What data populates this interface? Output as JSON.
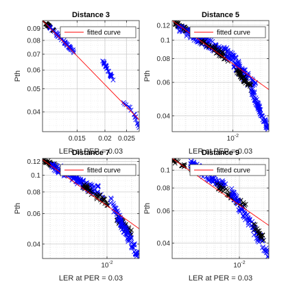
{
  "figure": {
    "background": "#ffffff"
  },
  "chart_data": [
    {
      "type": "scatter",
      "title": "Distance 3",
      "xlabel": "LER at PER = 0.03",
      "ylabel": "Pth",
      "xscale": "log",
      "yscale": "log",
      "xlim": [
        0.0105,
        0.0285
      ],
      "ylim": [
        0.033,
        0.097
      ],
      "xticks": [
        0.015,
        0.02,
        0.025
      ],
      "xtick_labels": [
        "0.015",
        "0.02",
        "0.025"
      ],
      "yticks": [
        0.04,
        0.05,
        0.06,
        0.07,
        0.08,
        0.09
      ],
      "ytick_labels": [
        "0.04",
        "0.05",
        "0.06",
        "0.07",
        "0.08",
        "0.09"
      ],
      "grid": true,
      "legend_position": "top-right",
      "legend_label": "fitted curve",
      "fit_line": [
        [
          0.0105,
          0.097
        ],
        [
          0.0285,
          0.037
        ]
      ],
      "clusters": [
        {
          "color": "#000000",
          "x": [
            0.0105,
            0.0118
          ],
          "y": [
            0.097,
            0.088
          ],
          "count": 30,
          "spread": 0.005
        },
        {
          "color": "#0000ff",
          "x": [
            0.011,
            0.0145
          ],
          "y": [
            0.093,
            0.072
          ],
          "count": 45,
          "spread": 0.012
        },
        {
          "color": "#0000ff",
          "x": [
            0.0195,
            0.0225
          ],
          "y": [
            0.066,
            0.052
          ],
          "count": 22,
          "spread": 0.012
        },
        {
          "color": "#0000ff",
          "x": [
            0.024,
            0.0262
          ],
          "y": [
            0.044,
            0.041
          ],
          "count": 6,
          "spread": 0.01
        },
        {
          "color": "#0000ff",
          "x": [
            0.0268,
            0.0285
          ],
          "y": [
            0.04,
            0.034
          ],
          "count": 10,
          "spread": 0.015
        }
      ]
    },
    {
      "type": "scatter",
      "title": "Distance 5",
      "xlabel": "LER at PER = 0.03",
      "ylabel": "Pth",
      "xscale": "log",
      "yscale": "log",
      "xlim": [
        0.00215,
        0.025
      ],
      "ylim": [
        0.033,
        0.127
      ],
      "xticks": [
        0.01
      ],
      "xtick_labels": [
        "10-2"
      ],
      "yticks": [
        0.04,
        0.06,
        0.08,
        0.1,
        0.12
      ],
      "ytick_labels": [
        "0.04",
        "0.06",
        "0.08",
        "0.1",
        "0.12"
      ],
      "grid": true,
      "legend_position": "top-right",
      "legend_label": "fitted curve",
      "fit_line": [
        [
          0.00215,
          0.127
        ],
        [
          0.025,
          0.055
        ]
      ],
      "clusters": [
        {
          "color": "#000000",
          "x": [
            0.0022,
            0.0032
          ],
          "y": [
            0.125,
            0.113
          ],
          "count": 40,
          "spread": 0.02
        },
        {
          "color": "#0000ff",
          "x": [
            0.0025,
            0.0075
          ],
          "y": [
            0.118,
            0.088
          ],
          "count": 110,
          "spread": 0.05
        },
        {
          "color": "#000000",
          "x": [
            0.0045,
            0.009
          ],
          "y": [
            0.098,
            0.08
          ],
          "count": 45,
          "spread": 0.035
        },
        {
          "color": "#0000ff",
          "x": [
            0.008,
            0.018
          ],
          "y": [
            0.09,
            0.055
          ],
          "count": 100,
          "spread": 0.07
        },
        {
          "color": "#000000",
          "x": [
            0.011,
            0.016
          ],
          "y": [
            0.07,
            0.056
          ],
          "count": 40,
          "spread": 0.03
        },
        {
          "color": "#0000ff",
          "x": [
            0.016,
            0.0245
          ],
          "y": [
            0.055,
            0.034
          ],
          "count": 60,
          "spread": 0.04
        }
      ]
    },
    {
      "type": "scatter",
      "title": "Distance 7",
      "xlabel": "LER at PER = 0.03",
      "ylabel": "Pth",
      "xscale": "log",
      "yscale": "log",
      "xlim": [
        0.0016,
        0.025
      ],
      "ylim": [
        0.033,
        0.125
      ],
      "xticks": [
        0.01
      ],
      "xtick_labels": [
        "10-2"
      ],
      "yticks": [
        0.04,
        0.06,
        0.08,
        0.1,
        0.12
      ],
      "ytick_labels": [
        "0.04",
        "0.06",
        "0.08",
        "0.1",
        "0.12"
      ],
      "grid": true,
      "legend_position": "top-right",
      "legend_label": "fitted curve",
      "fit_line": [
        [
          0.0016,
          0.123
        ],
        [
          0.025,
          0.049
        ]
      ],
      "clusters": [
        {
          "color": "#000000",
          "x": [
            0.0016,
            0.0024
          ],
          "y": [
            0.123,
            0.112
          ],
          "count": 35,
          "spread": 0.02
        },
        {
          "color": "#0000ff",
          "x": [
            0.002,
            0.007
          ],
          "y": [
            0.116,
            0.082
          ],
          "count": 110,
          "spread": 0.05
        },
        {
          "color": "#0000ff",
          "x": [
            0.0075,
            0.009
          ],
          "y": [
            0.083,
            0.076
          ],
          "count": 10,
          "spread": 0.06
        },
        {
          "color": "#000000",
          "x": [
            0.005,
            0.011
          ],
          "y": [
            0.088,
            0.066
          ],
          "count": 40,
          "spread": 0.035
        },
        {
          "color": "#000000",
          "x": [
            0.013,
            0.02
          ],
          "y": [
            0.057,
            0.046
          ],
          "count": 45,
          "spread": 0.04
        },
        {
          "color": "#0000ff",
          "x": [
            0.011,
            0.0245
          ],
          "y": [
            0.07,
            0.034
          ],
          "count": 90,
          "spread": 0.06
        }
      ]
    },
    {
      "type": "scatter",
      "title": "Distance 9",
      "xlabel": "LER at PER = 0.03",
      "ylabel": "Pth",
      "xscale": "log",
      "yscale": "log",
      "xlim": [
        0.0015,
        0.023
      ],
      "ylim": [
        0.033,
        0.116
      ],
      "xticks": [
        0.01
      ],
      "xtick_labels": [
        "10-2"
      ],
      "yticks": [
        0.04,
        0.06,
        0.08,
        0.1
      ],
      "ytick_labels": [
        "0.04",
        "0.06",
        "0.08",
        "0.1"
      ],
      "grid": true,
      "legend_position": "top-right",
      "legend_label": "fitted curve",
      "fit_line": [
        [
          0.0015,
          0.116
        ],
        [
          0.023,
          0.05
        ]
      ],
      "clusters": [
        {
          "color": "#000000",
          "x": [
            0.0015,
            0.003
          ],
          "y": [
            0.113,
            0.1
          ],
          "count": 25,
          "spread": 0.02
        },
        {
          "color": "#0000ff",
          "x": [
            0.0025,
            0.007
          ],
          "y": [
            0.108,
            0.08
          ],
          "count": 100,
          "spread": 0.05
        },
        {
          "color": "#000000",
          "x": [
            0.005,
            0.012
          ],
          "y": [
            0.085,
            0.063
          ],
          "count": 45,
          "spread": 0.035
        },
        {
          "color": "#0000ff",
          "x": [
            0.008,
            0.023
          ],
          "y": [
            0.075,
            0.035
          ],
          "count": 100,
          "spread": 0.06
        },
        {
          "color": "#000000",
          "x": [
            0.015,
            0.02
          ],
          "y": [
            0.05,
            0.042
          ],
          "count": 20,
          "spread": 0.03
        }
      ]
    }
  ]
}
